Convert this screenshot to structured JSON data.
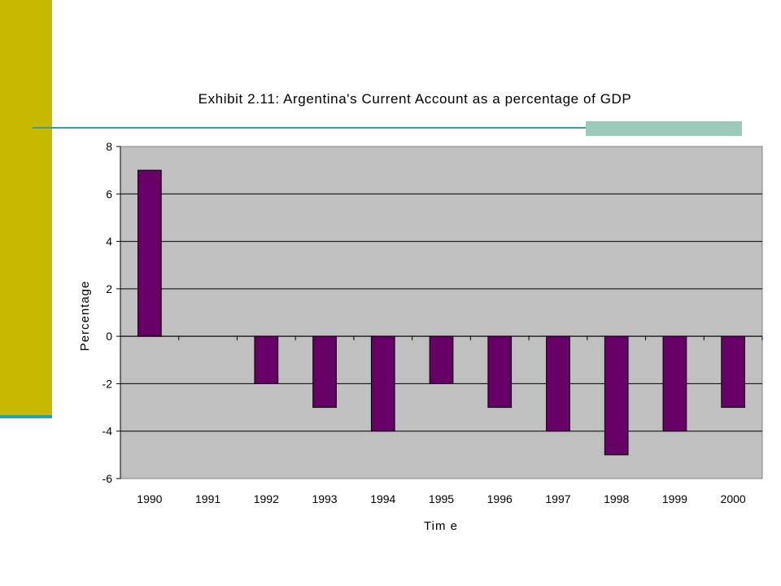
{
  "slide": {
    "accent_bar_color": "#c7b800",
    "rule_color": "#3a9c9e"
  },
  "chart_data": {
    "type": "bar",
    "title": "Exhibit 2.11: Argentina's Current Account as a percentage of GDP",
    "xlabel": "Tim e",
    "ylabel": "Percentage",
    "categories": [
      "1990",
      "1991",
      "1992",
      "1993",
      "1994",
      "1995",
      "1996",
      "1997",
      "1998",
      "1999",
      "2000"
    ],
    "values": [
      7,
      0,
      -2,
      -3,
      -4,
      -2,
      -3,
      -4,
      -5,
      -4,
      -3
    ],
    "ylim": [
      -6,
      8
    ],
    "yticks": [
      8,
      6,
      4,
      2,
      0,
      -2,
      -4,
      -6
    ],
    "grid": true,
    "legend": "none",
    "bar_color": "#660066",
    "plot_background": "#c0c0c0"
  }
}
